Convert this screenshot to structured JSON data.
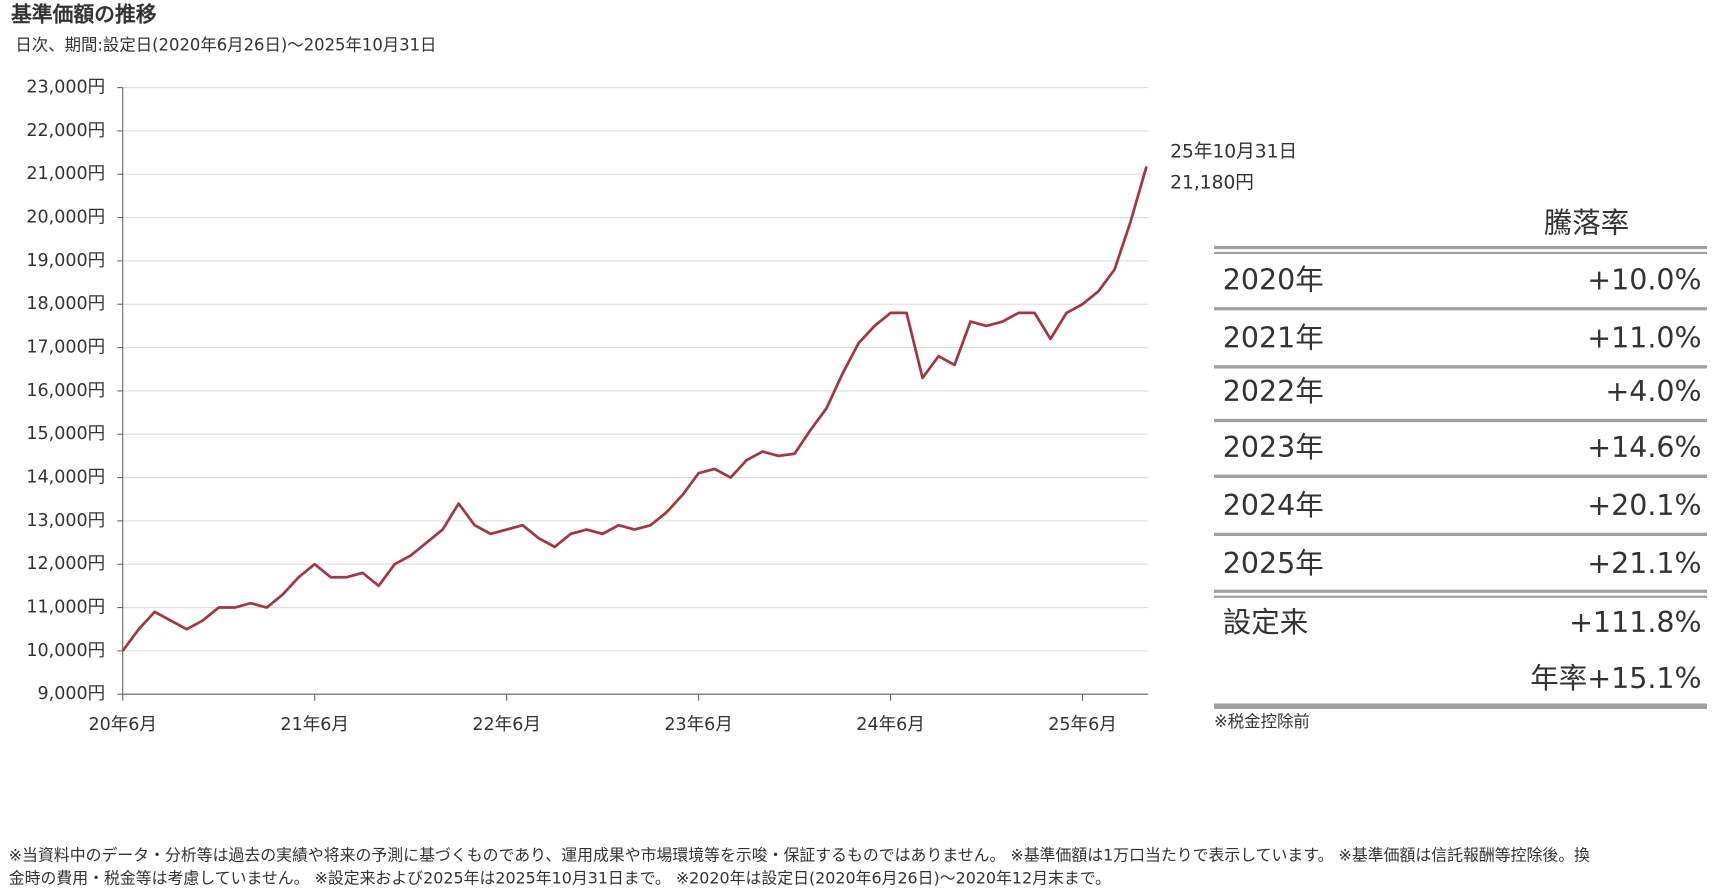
{
  "chart_data": {
    "type": "line",
    "title": "基準価額の推移",
    "subtitle": "日次、期間:設定日(2020年6月26日)～2025年10月31日",
    "x": [
      "2020-06",
      "2020-07",
      "2020-08",
      "2020-09",
      "2020-10",
      "2020-11",
      "2020-12",
      "2021-01",
      "2021-02",
      "2021-03",
      "2021-04",
      "2021-05",
      "2021-06",
      "2021-07",
      "2021-08",
      "2021-09",
      "2021-10",
      "2021-11",
      "2021-12",
      "2022-01",
      "2022-02",
      "2022-03",
      "2022-04",
      "2022-05",
      "2022-06",
      "2022-07",
      "2022-08",
      "2022-09",
      "2022-10",
      "2022-11",
      "2022-12",
      "2023-01",
      "2023-02",
      "2023-03",
      "2023-04",
      "2023-05",
      "2023-06",
      "2023-07",
      "2023-08",
      "2023-09",
      "2023-10",
      "2023-11",
      "2023-12",
      "2024-01",
      "2024-02",
      "2024-03",
      "2024-04",
      "2024-05",
      "2024-06",
      "2024-07",
      "2024-08",
      "2024-09",
      "2024-10",
      "2024-11",
      "2024-12",
      "2025-01",
      "2025-02",
      "2025-03",
      "2025-04",
      "2025-05",
      "2025-06",
      "2025-07",
      "2025-08",
      "2025-09",
      "2025-10"
    ],
    "values": [
      10000,
      10500,
      10900,
      10700,
      10500,
      10700,
      11000,
      11000,
      11100,
      11000,
      11300,
      11700,
      12000,
      11700,
      11700,
      11800,
      11500,
      12000,
      12200,
      12500,
      12800,
      13400,
      12900,
      12700,
      12800,
      12900,
      12600,
      12400,
      12700,
      12800,
      12700,
      12900,
      12800,
      12900,
      13200,
      13600,
      14100,
      14200,
      14000,
      14400,
      14600,
      14500,
      14550,
      15100,
      15600,
      16400,
      17100,
      17500,
      17800,
      17800,
      16300,
      16800,
      16600,
      17600,
      17500,
      17600,
      17800,
      17800,
      17200,
      17800,
      18000,
      18300,
      18800,
      19900,
      21180
    ],
    "color": "#a0383f",
    "ylim": [
      9000,
      23000
    ],
    "yticks": [
      {
        "value": 9000,
        "label": "9,000円"
      },
      {
        "value": 10000,
        "label": "10,000円"
      },
      {
        "value": 11000,
        "label": "11,000円"
      },
      {
        "value": 12000,
        "label": "12,000円"
      },
      {
        "value": 13000,
        "label": "13,000円"
      },
      {
        "value": 14000,
        "label": "14,000円"
      },
      {
        "value": 15000,
        "label": "15,000円"
      },
      {
        "value": 16000,
        "label": "16,000円"
      },
      {
        "value": 17000,
        "label": "17,000円"
      },
      {
        "value": 18000,
        "label": "18,000円"
      },
      {
        "value": 19000,
        "label": "19,000円"
      },
      {
        "value": 20000,
        "label": "20,000円"
      },
      {
        "value": 21000,
        "label": "21,000円"
      },
      {
        "value": 22000,
        "label": "22,000円"
      },
      {
        "value": 23000,
        "label": "23,000円"
      }
    ],
    "xticks": [
      {
        "value": "2020-06",
        "label": "20年6月"
      },
      {
        "value": "2021-06",
        "label": "21年6月"
      },
      {
        "value": "2022-06",
        "label": "22年6月"
      },
      {
        "value": "2023-06",
        "label": "23年6月"
      },
      {
        "value": "2024-06",
        "label": "24年6月"
      },
      {
        "value": "2025-06",
        "label": "25年6月"
      }
    ],
    "grid": true,
    "end_annotation": {
      "date": "25年10月31日",
      "value_label": "21,180円"
    }
  },
  "table": {
    "header": "騰落率",
    "rows": [
      [
        "2020年",
        "+10.0%"
      ],
      [
        "2021年",
        "+11.0%"
      ],
      [
        "2022年",
        "+4.0%"
      ],
      [
        "2023年",
        "+14.6%"
      ],
      [
        "2024年",
        "+20.1%"
      ],
      [
        "2025年",
        "+21.1%"
      ],
      [
        "設定来",
        "+111.8%"
      ]
    ],
    "annualized": "年率+15.1%",
    "note": "※税金控除前"
  },
  "footnote": [
    "※当資料中のデータ・分析等は過去の実績や将来の予測に基づくものであり、運用成果や市場環境等を示唆・保証するものではありません。 ※基準価額は1万口当たりで表示しています。 ※基準価額は信託報酬等控除後。換",
    "金時の費用・税金等は考慮していません。 ※設定来および2025年は2025年10月31日まで。 ※2020年は設定日(2020年6月26日)～2020年12月末まで。"
  ]
}
